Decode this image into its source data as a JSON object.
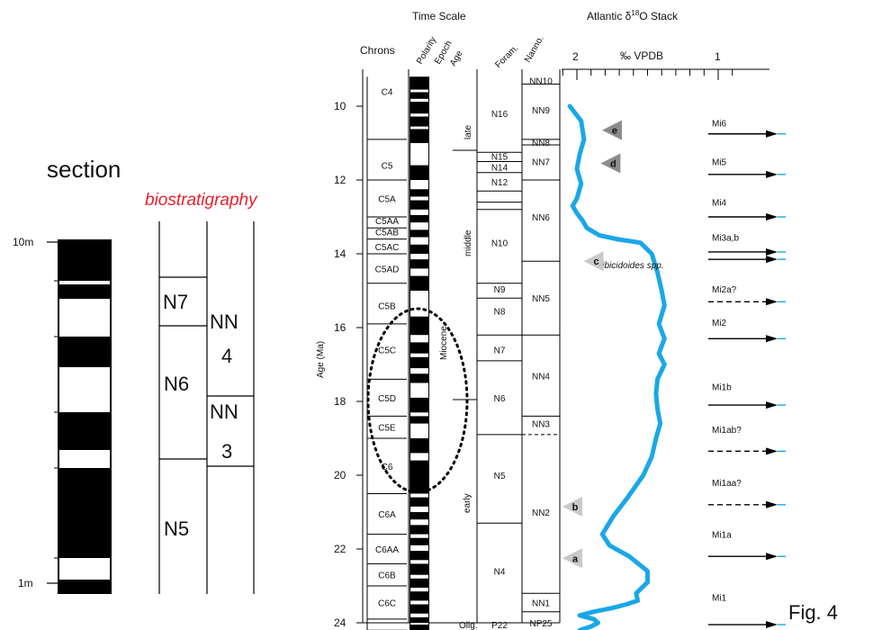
{
  "figure_label": "Fig. 4",
  "section": {
    "title": "section",
    "depth_labels": [
      "10m",
      "1m"
    ]
  },
  "biostrat": {
    "title": "biostratigraphy",
    "foram_zones": [
      "N7",
      "N6",
      "N5"
    ],
    "nanno_zones": [
      "NN 4",
      "NN 3"
    ]
  },
  "chart": {
    "header_time_scale": "Time Scale",
    "header_stack": "Atlantic δ18O Stack",
    "col_chrons": "Chrons",
    "col_polarity": "Polarity",
    "col_epoch": "Epoch",
    "col_age": "Age",
    "col_foram": "Foram.",
    "col_nanno": "Nanno.",
    "y_axis_label": "Age (Ma)",
    "y_ticks": [
      "10",
      "12",
      "14",
      "16",
      "18",
      "20",
      "22",
      "24"
    ],
    "x_unit": "‰ VPDB",
    "x_ticks": [
      "2",
      "1"
    ],
    "chrons": [
      "C4",
      "C5",
      "C5A",
      "C5AA",
      "C5AB",
      "C5AC",
      "C5AD",
      "C5B",
      "C5C",
      "C5D",
      "C5E",
      "C6",
      "C6A",
      "C6AA",
      "C6B",
      "C6C"
    ],
    "epoch": "Miocene",
    "subepochs": [
      "late",
      "middle",
      "early"
    ],
    "foram": [
      "N16",
      "N15",
      "N14",
      "N12",
      "N10",
      "N9",
      "N8",
      "N7",
      "N6",
      "N5",
      "N4",
      "Olig.",
      "P22"
    ],
    "nanno": [
      "NN10",
      "NN9",
      "NN8",
      "NN7",
      "NN6",
      "NN5",
      "NN4",
      "NN3",
      "NN2",
      "NN1",
      "NP25"
    ],
    "genus_label": "Cibicidoides spp.",
    "markers": [
      "e",
      "d",
      "c",
      "b",
      "a"
    ],
    "events": [
      "Mi6",
      "Mi5",
      "Mi4",
      "Mi3a,b",
      "Mi2a?",
      "Mi2",
      "Mi1b",
      "Mi1ab?",
      "Mi1aa?",
      "Mi1a",
      "Mi1"
    ],
    "curve_color": "#1aa7e8"
  },
  "chart_data": {
    "type": "line",
    "title": "Atlantic δ18O Stack",
    "xlabel": "‰ VPDB",
    "ylabel": "Age (Ma)",
    "ylim": [
      24.2,
      9.2
    ],
    "xlim": [
      2.1,
      0.9
    ],
    "series": [
      {
        "name": "Cibicidoides spp.",
        "x": [
          2.05,
          1.97,
          1.95,
          1.98,
          2.0,
          1.97,
          2.0,
          2.03,
          2.0,
          1.96,
          1.93,
          1.84,
          1.72,
          1.55,
          1.47,
          1.43,
          1.4,
          1.38,
          1.42,
          1.38,
          1.42,
          1.38,
          1.43,
          1.44,
          1.43,
          1.41,
          1.44,
          1.47,
          1.53,
          1.64,
          1.74,
          1.82,
          1.77,
          1.63,
          1.5,
          1.5,
          1.58,
          1.57,
          1.65,
          1.75,
          1.88,
          1.98,
          1.88,
          1.85,
          1.9,
          1.98
        ],
        "y": [
          10.0,
          10.4,
          10.9,
          11.3,
          11.7,
          12.1,
          12.5,
          12.7,
          12.9,
          13.1,
          13.3,
          13.5,
          13.6,
          13.7,
          14.0,
          14.5,
          15.0,
          15.4,
          15.9,
          16.3,
          16.7,
          17.0,
          17.4,
          17.8,
          18.2,
          18.6,
          19.0,
          19.5,
          20.0,
          20.6,
          21.1,
          21.6,
          21.9,
          22.2,
          22.6,
          22.9,
          23.2,
          23.4,
          23.5,
          23.6,
          23.7,
          23.8,
          23.9,
          24.0,
          24.1,
          24.2
        ]
      }
    ]
  }
}
